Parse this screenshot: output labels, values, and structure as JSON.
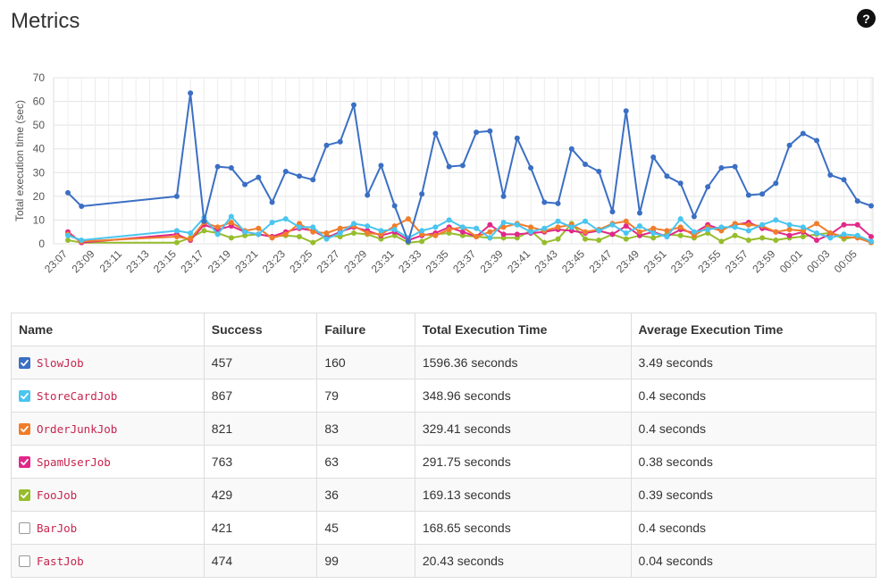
{
  "header": {
    "title": "Metrics",
    "help_label": "?"
  },
  "chart_data": {
    "type": "line",
    "ylabel": "Total execution time (sec)",
    "xlabel": "",
    "ylim": [
      0,
      70
    ],
    "yticks": [
      0,
      10,
      20,
      30,
      40,
      50,
      60,
      70
    ],
    "grid": true,
    "xstart": "23:07",
    "xticks": [
      "23:07",
      "23:09",
      "23:11",
      "23:13",
      "23:15",
      "23:17",
      "23:19",
      "23:21",
      "23:23",
      "23:25",
      "23:27",
      "23:29",
      "23:31",
      "23:33",
      "23:35",
      "23:37",
      "23:39",
      "23:41",
      "23:43",
      "23:45",
      "23:47",
      "23:49",
      "23:51",
      "23:53",
      "23:55",
      "23:57",
      "23:59",
      "00:01",
      "00:03",
      "00:05"
    ],
    "series": [
      {
        "name": "SlowJob",
        "color": "#3b6fc4",
        "points": [
          [
            "23:07",
            21.5
          ],
          [
            "23:08",
            15.8
          ],
          [
            "23:15",
            20
          ],
          [
            "23:16",
            63.5
          ],
          [
            "23:17",
            9.5
          ],
          [
            "23:18",
            32.5
          ],
          [
            "23:19",
            32
          ],
          [
            "23:20",
            25
          ],
          [
            "23:21",
            28
          ],
          [
            "23:22",
            17.5
          ],
          [
            "23:23",
            30.5
          ],
          [
            "23:24",
            28.5
          ],
          [
            "23:25",
            27
          ],
          [
            "23:26",
            41.5
          ],
          [
            "23:27",
            43
          ],
          [
            "23:28",
            58.5
          ],
          [
            "23:29",
            20.5
          ],
          [
            "23:30",
            33
          ],
          [
            "23:31",
            16
          ],
          [
            "23:32",
            1
          ],
          [
            "23:33",
            21
          ],
          [
            "23:34",
            46.5
          ],
          [
            "23:35",
            32.5
          ],
          [
            "23:36",
            33
          ],
          [
            "23:37",
            47
          ],
          [
            "23:38",
            47.5
          ],
          [
            "23:39",
            20
          ],
          [
            "23:40",
            44.5
          ],
          [
            "23:41",
            32
          ],
          [
            "23:42",
            17.5
          ],
          [
            "23:43",
            17
          ],
          [
            "23:44",
            40
          ],
          [
            "23:45",
            33.5
          ],
          [
            "23:46",
            30.5
          ],
          [
            "23:47",
            13.5
          ],
          [
            "23:48",
            56
          ],
          [
            "23:49",
            13
          ],
          [
            "23:50",
            36.5
          ],
          [
            "23:51",
            28.5
          ],
          [
            "23:52",
            25.5
          ],
          [
            "23:53",
            11.5
          ],
          [
            "23:54",
            24
          ],
          [
            "23:55",
            32
          ],
          [
            "23:56",
            32.5
          ],
          [
            "23:57",
            20.5
          ],
          [
            "23:58",
            21
          ],
          [
            "23:59",
            25.5
          ],
          [
            "00:00",
            41.5
          ],
          [
            "00:01",
            46.5
          ],
          [
            "00:02",
            43.5
          ],
          [
            "00:03",
            29
          ],
          [
            "00:04",
            27
          ],
          [
            "00:05",
            18
          ],
          [
            "00:06",
            16
          ]
        ]
      },
      {
        "name": "StoreCardJob",
        "color": "#49c5f0",
        "points": [
          [
            "23:07",
            3.5
          ],
          [
            "23:08",
            1.5
          ],
          [
            "23:15",
            5.5
          ],
          [
            "23:16",
            4.5
          ],
          [
            "23:17",
            11
          ],
          [
            "23:18",
            4
          ],
          [
            "23:19",
            11.5
          ],
          [
            "23:20",
            5
          ],
          [
            "23:21",
            4
          ],
          [
            "23:22",
            9
          ],
          [
            "23:23",
            10.5
          ],
          [
            "23:24",
            7
          ],
          [
            "23:25",
            7
          ],
          [
            "23:26",
            2
          ],
          [
            "23:27",
            4.5
          ],
          [
            "23:28",
            8.5
          ],
          [
            "23:29",
            7.5
          ],
          [
            "23:30",
            5.5
          ],
          [
            "23:31",
            6
          ],
          [
            "23:32",
            2.5
          ],
          [
            "23:33",
            5.5
          ],
          [
            "23:34",
            7
          ],
          [
            "23:35",
            10
          ],
          [
            "23:36",
            7
          ],
          [
            "23:37",
            6.5
          ],
          [
            "23:38",
            2.5
          ],
          [
            "23:39",
            9
          ],
          [
            "23:40",
            8
          ],
          [
            "23:41",
            5
          ],
          [
            "23:42",
            6.5
          ],
          [
            "23:43",
            9.5
          ],
          [
            "23:44",
            7
          ],
          [
            "23:45",
            9.5
          ],
          [
            "23:46",
            5.5
          ],
          [
            "23:47",
            8
          ],
          [
            "23:48",
            4.5
          ],
          [
            "23:49",
            7.5
          ],
          [
            "23:50",
            4.5
          ],
          [
            "23:51",
            3
          ],
          [
            "23:52",
            10.5
          ],
          [
            "23:53",
            5
          ],
          [
            "23:54",
            6
          ],
          [
            "23:55",
            7
          ],
          [
            "23:56",
            7
          ],
          [
            "23:57",
            5.5
          ],
          [
            "23:58",
            8
          ],
          [
            "23:59",
            10
          ],
          [
            "00:00",
            8
          ],
          [
            "00:01",
            7
          ],
          [
            "00:02",
            4.5
          ],
          [
            "00:03",
            2.5
          ],
          [
            "00:04",
            4
          ],
          [
            "00:05",
            3.5
          ],
          [
            "00:06",
            1
          ]
        ]
      },
      {
        "name": "OrderJunkJob",
        "color": "#f07d2a",
        "points": [
          [
            "23:07",
            4
          ],
          [
            "23:08",
            1
          ],
          [
            "23:15",
            3
          ],
          [
            "23:16",
            2
          ],
          [
            "23:17",
            9
          ],
          [
            "23:18",
            7
          ],
          [
            "23:19",
            9
          ],
          [
            "23:20",
            5.5
          ],
          [
            "23:21",
            6.5
          ],
          [
            "23:22",
            2.5
          ],
          [
            "23:23",
            4
          ],
          [
            "23:24",
            8.5
          ],
          [
            "23:25",
            5
          ],
          [
            "23:26",
            4.5
          ],
          [
            "23:27",
            6.5
          ],
          [
            "23:28",
            7.5
          ],
          [
            "23:29",
            4.5
          ],
          [
            "23:30",
            4
          ],
          [
            "23:31",
            7.5
          ],
          [
            "23:32",
            10.5
          ],
          [
            "23:33",
            4
          ],
          [
            "23:34",
            3.5
          ],
          [
            "23:35",
            6
          ],
          [
            "23:36",
            7
          ],
          [
            "23:37",
            3
          ],
          [
            "23:38",
            5
          ],
          [
            "23:39",
            7
          ],
          [
            "23:40",
            8.5
          ],
          [
            "23:41",
            7
          ],
          [
            "23:42",
            5.5
          ],
          [
            "23:43",
            7
          ],
          [
            "23:44",
            8
          ],
          [
            "23:45",
            5
          ],
          [
            "23:46",
            6
          ],
          [
            "23:47",
            8.5
          ],
          [
            "23:48",
            9.5
          ],
          [
            "23:49",
            5
          ],
          [
            "23:50",
            6.5
          ],
          [
            "23:51",
            5.5
          ],
          [
            "23:52",
            7
          ],
          [
            "23:53",
            3.5
          ],
          [
            "23:54",
            7
          ],
          [
            "23:55",
            5.5
          ],
          [
            "23:56",
            8.5
          ],
          [
            "23:57",
            8
          ],
          [
            "23:58",
            7.5
          ],
          [
            "23:59",
            5
          ],
          [
            "00:00",
            6
          ],
          [
            "00:01",
            5.5
          ],
          [
            "00:02",
            8.5
          ],
          [
            "00:03",
            4.5
          ],
          [
            "00:04",
            3
          ],
          [
            "00:05",
            2.5
          ],
          [
            "00:06",
            0.5
          ]
        ]
      },
      {
        "name": "SpamUserJob",
        "color": "#e0288a",
        "points": [
          [
            "23:07",
            5
          ],
          [
            "23:08",
            0.5
          ],
          [
            "23:15",
            4
          ],
          [
            "23:16",
            1.5
          ],
          [
            "23:17",
            8
          ],
          [
            "23:18",
            6
          ],
          [
            "23:19",
            7.5
          ],
          [
            "23:20",
            5
          ],
          [
            "23:21",
            4
          ],
          [
            "23:22",
            3
          ],
          [
            "23:23",
            5
          ],
          [
            "23:24",
            6.5
          ],
          [
            "23:25",
            5.5
          ],
          [
            "23:26",
            2.5
          ],
          [
            "23:27",
            5
          ],
          [
            "23:28",
            7
          ],
          [
            "23:29",
            5.5
          ],
          [
            "23:30",
            3.5
          ],
          [
            "23:31",
            5
          ],
          [
            "23:32",
            1.5
          ],
          [
            "23:33",
            3.5
          ],
          [
            "23:34",
            4.5
          ],
          [
            "23:35",
            7
          ],
          [
            "23:36",
            5
          ],
          [
            "23:37",
            3
          ],
          [
            "23:38",
            8
          ],
          [
            "23:39",
            4
          ],
          [
            "23:40",
            4
          ],
          [
            "23:41",
            4.5
          ],
          [
            "23:42",
            5
          ],
          [
            "23:43",
            6
          ],
          [
            "23:44",
            5.5
          ],
          [
            "23:45",
            4.5
          ],
          [
            "23:46",
            5.5
          ],
          [
            "23:47",
            4
          ],
          [
            "23:48",
            7.5
          ],
          [
            "23:49",
            3.5
          ],
          [
            "23:50",
            5
          ],
          [
            "23:51",
            3
          ],
          [
            "23:52",
            6
          ],
          [
            "23:53",
            4.5
          ],
          [
            "23:54",
            8
          ],
          [
            "23:55",
            6
          ],
          [
            "23:56",
            8
          ],
          [
            "23:57",
            9
          ],
          [
            "23:58",
            6.5
          ],
          [
            "23:59",
            5
          ],
          [
            "00:00",
            3.5
          ],
          [
            "00:01",
            5
          ],
          [
            "00:02",
            1.5
          ],
          [
            "00:03",
            4
          ],
          [
            "00:04",
            8
          ],
          [
            "00:05",
            8
          ],
          [
            "00:06",
            3
          ]
        ]
      },
      {
        "name": "FooJob",
        "color": "#97bd2c",
        "points": [
          [
            "23:07",
            1.5
          ],
          [
            "23:08",
            0.5
          ],
          [
            "23:15",
            0.5
          ],
          [
            "23:16",
            2.5
          ],
          [
            "23:17",
            5.5
          ],
          [
            "23:18",
            4.5
          ],
          [
            "23:19",
            2.5
          ],
          [
            "23:20",
            3.5
          ],
          [
            "23:21",
            4
          ],
          [
            "23:22",
            3
          ],
          [
            "23:23",
            3.5
          ],
          [
            "23:24",
            3
          ],
          [
            "23:25",
            0.5
          ],
          [
            "23:26",
            3.5
          ],
          [
            "23:27",
            3
          ],
          [
            "23:28",
            4.5
          ],
          [
            "23:29",
            4
          ],
          [
            "23:30",
            2
          ],
          [
            "23:31",
            3.5
          ],
          [
            "23:32",
            0.5
          ],
          [
            "23:33",
            1
          ],
          [
            "23:34",
            4
          ],
          [
            "23:35",
            4.5
          ],
          [
            "23:36",
            3.5
          ],
          [
            "23:37",
            3
          ],
          [
            "23:38",
            2.5
          ],
          [
            "23:39",
            2.5
          ],
          [
            "23:40",
            2.5
          ],
          [
            "23:41",
            5.5
          ],
          [
            "23:42",
            0.5
          ],
          [
            "23:43",
            2
          ],
          [
            "23:44",
            8.5
          ],
          [
            "23:45",
            2
          ],
          [
            "23:46",
            1.5
          ],
          [
            "23:47",
            4
          ],
          [
            "23:48",
            2
          ],
          [
            "23:49",
            3.5
          ],
          [
            "23:50",
            2.5
          ],
          [
            "23:51",
            4
          ],
          [
            "23:52",
            3.5
          ],
          [
            "23:53",
            2.5
          ],
          [
            "23:54",
            4.5
          ],
          [
            "23:55",
            1
          ],
          [
            "23:56",
            3.5
          ],
          [
            "23:57",
            1.5
          ],
          [
            "23:58",
            2.5
          ],
          [
            "23:59",
            1.5
          ],
          [
            "00:00",
            2.5
          ],
          [
            "00:01",
            3
          ],
          [
            "00:02",
            4
          ],
          [
            "00:03",
            4.5
          ],
          [
            "00:04",
            2
          ],
          [
            "00:05",
            3
          ],
          [
            "00:06",
            0.5
          ]
        ]
      }
    ]
  },
  "table": {
    "columns": [
      "Name",
      "Success",
      "Failure",
      "Total Execution Time",
      "Average Execution Time"
    ],
    "rows": [
      {
        "name": "SlowJob",
        "checked": true,
        "color": "#3b6fc4",
        "success": "457",
        "failure": "160",
        "total": "1596.36 seconds",
        "average": "3.49 seconds"
      },
      {
        "name": "StoreCardJob",
        "checked": true,
        "color": "#49c5f0",
        "success": "867",
        "failure": "79",
        "total": "348.96 seconds",
        "average": "0.4 seconds"
      },
      {
        "name": "OrderJunkJob",
        "checked": true,
        "color": "#f07d2a",
        "success": "821",
        "failure": "83",
        "total": "329.41 seconds",
        "average": "0.4 seconds"
      },
      {
        "name": "SpamUserJob",
        "checked": true,
        "color": "#e0288a",
        "success": "763",
        "failure": "63",
        "total": "291.75 seconds",
        "average": "0.38 seconds"
      },
      {
        "name": "FooJob",
        "checked": true,
        "color": "#97bd2c",
        "success": "429",
        "failure": "36",
        "total": "169.13 seconds",
        "average": "0.39 seconds"
      },
      {
        "name": "BarJob",
        "checked": false,
        "color": "",
        "success": "421",
        "failure": "45",
        "total": "168.65 seconds",
        "average": "0.4 seconds"
      },
      {
        "name": "FastJob",
        "checked": false,
        "color": "",
        "success": "474",
        "failure": "99",
        "total": "20.43 seconds",
        "average": "0.04 seconds"
      }
    ]
  }
}
